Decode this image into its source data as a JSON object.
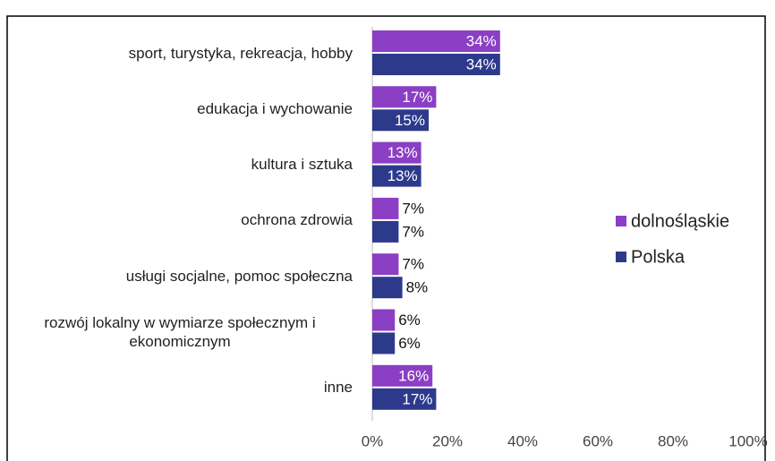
{
  "chart_data": {
    "type": "bar",
    "orientation": "horizontal",
    "categories": [
      "sport, turystyka, rekreacja, hobby",
      "edukacja i wychowanie",
      "kultura i sztuka",
      "ochrona zdrowia",
      "usługi socjalne, pomoc społeczna",
      "rozwój lokalny w wymiarze społecznym i ekonomicznym",
      "inne"
    ],
    "series": [
      {
        "name": "dolnośląskie",
        "color": "#8b3fc4",
        "values": [
          34,
          17,
          13,
          7,
          7,
          6,
          16
        ],
        "value_labels": [
          "34%",
          "17%",
          "13%",
          "7%",
          "7%",
          "6%",
          "16%"
        ]
      },
      {
        "name": "Polska",
        "color": "#2d3a8c",
        "values": [
          34,
          15,
          13,
          7,
          8,
          6,
          17
        ],
        "value_labels": [
          "34%",
          "15%",
          "13%",
          "7%",
          "8%",
          "6%",
          "17%"
        ]
      }
    ],
    "xlim": [
      0,
      100
    ],
    "xticks": [
      {
        "value": 0,
        "label": "0%"
      },
      {
        "value": 20,
        "label": "20%"
      },
      {
        "value": 40,
        "label": "40%"
      },
      {
        "value": 60,
        "label": "60%"
      },
      {
        "value": 80,
        "label": "80%"
      },
      {
        "value": 100,
        "label": "100%"
      }
    ],
    "grid": false,
    "legend": "right"
  }
}
